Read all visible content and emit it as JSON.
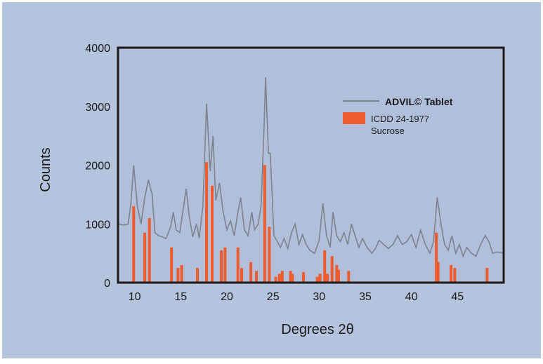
{
  "colors": {
    "panel": "#b6c3dc",
    "plot_bg": "#b2bfdb",
    "frame": "#1a1a1a",
    "trace": "#7d828c",
    "bars": "#ee5b2c",
    "text": "#1a1a1a"
  },
  "chart_data": {
    "type": "bar",
    "title": "",
    "xlabel": "Degrees  2θ",
    "ylabel": "Counts",
    "xlim": [
      8.2,
      50
    ],
    "ylim": [
      0,
      4000
    ],
    "x_ticks": [
      10,
      15,
      20,
      25,
      30,
      35,
      40,
      45
    ],
    "y_ticks": [
      0,
      1000,
      2000,
      3000,
      4000
    ],
    "grid": false,
    "legend_position": "top-right",
    "legend": {
      "line_label": "ADVIL© Tablet",
      "bar_label_line1": "ICDD 24-1977",
      "bar_label_line2": "Sucrose"
    },
    "series": [
      {
        "name": "ADVIL© Tablet",
        "type": "line",
        "points": [
          [
            8.2,
            1000
          ],
          [
            8.8,
            980
          ],
          [
            9.3,
            1000
          ],
          [
            9.6,
            1350
          ],
          [
            9.9,
            2000
          ],
          [
            10.3,
            1300
          ],
          [
            10.7,
            1000
          ],
          [
            11.1,
            1450
          ],
          [
            11.5,
            1750
          ],
          [
            11.9,
            1500
          ],
          [
            12.2,
            850
          ],
          [
            12.6,
            800
          ],
          [
            13.0,
            780
          ],
          [
            13.4,
            750
          ],
          [
            13.9,
            950
          ],
          [
            14.2,
            1200
          ],
          [
            14.5,
            900
          ],
          [
            14.9,
            850
          ],
          [
            15.3,
            1300
          ],
          [
            15.6,
            1600
          ],
          [
            15.9,
            1150
          ],
          [
            16.3,
            780
          ],
          [
            16.7,
            1000
          ],
          [
            17.0,
            760
          ],
          [
            17.4,
            1300
          ],
          [
            17.8,
            3050
          ],
          [
            18.2,
            1900
          ],
          [
            18.5,
            2500
          ],
          [
            18.8,
            1400
          ],
          [
            19.2,
            1700
          ],
          [
            19.6,
            1200
          ],
          [
            20.0,
            900
          ],
          [
            20.4,
            1050
          ],
          [
            20.8,
            800
          ],
          [
            21.2,
            1200
          ],
          [
            21.5,
            1450
          ],
          [
            21.9,
            900
          ],
          [
            22.3,
            800
          ],
          [
            22.7,
            1200
          ],
          [
            23.0,
            900
          ],
          [
            23.4,
            1000
          ],
          [
            23.7,
            1300
          ],
          [
            24.0,
            2500
          ],
          [
            24.2,
            3500
          ],
          [
            24.5,
            2200
          ],
          [
            24.7,
            2200
          ],
          [
            25.1,
            800
          ],
          [
            25.4,
            720
          ],
          [
            25.8,
            600
          ],
          [
            26.2,
            750
          ],
          [
            26.6,
            580
          ],
          [
            27.0,
            850
          ],
          [
            27.4,
            1000
          ],
          [
            27.8,
            650
          ],
          [
            28.2,
            820
          ],
          [
            28.6,
            650
          ],
          [
            29.0,
            550
          ],
          [
            29.5,
            500
          ],
          [
            30.0,
            720
          ],
          [
            30.4,
            1350
          ],
          [
            30.8,
            800
          ],
          [
            31.2,
            600
          ],
          [
            31.5,
            1200
          ],
          [
            31.9,
            800
          ],
          [
            32.3,
            700
          ],
          [
            32.7,
            850
          ],
          [
            33.1,
            650
          ],
          [
            33.5,
            1000
          ],
          [
            33.9,
            800
          ],
          [
            34.3,
            600
          ],
          [
            34.7,
            750
          ],
          [
            35.2,
            600
          ],
          [
            35.7,
            500
          ],
          [
            36.1,
            580
          ],
          [
            36.5,
            720
          ],
          [
            37.0,
            650
          ],
          [
            37.5,
            580
          ],
          [
            38.0,
            650
          ],
          [
            38.5,
            800
          ],
          [
            39.0,
            650
          ],
          [
            39.5,
            700
          ],
          [
            40.0,
            820
          ],
          [
            40.5,
            600
          ],
          [
            41.0,
            900
          ],
          [
            41.5,
            650
          ],
          [
            42.0,
            500
          ],
          [
            42.4,
            700
          ],
          [
            42.8,
            1450
          ],
          [
            43.2,
            1000
          ],
          [
            43.6,
            650
          ],
          [
            44.0,
            550
          ],
          [
            44.4,
            800
          ],
          [
            44.8,
            500
          ],
          [
            45.2,
            650
          ],
          [
            45.6,
            450
          ],
          [
            46.0,
            600
          ],
          [
            46.5,
            500
          ],
          [
            47.0,
            450
          ],
          [
            47.5,
            650
          ],
          [
            48.0,
            800
          ],
          [
            48.4,
            700
          ],
          [
            48.8,
            500
          ],
          [
            49.3,
            520
          ],
          [
            50.0,
            500
          ]
        ]
      },
      {
        "name": "ICDD 24-1977 Sucrose",
        "type": "bar",
        "points": [
          [
            9.9,
            1300
          ],
          [
            11.1,
            850
          ],
          [
            11.6,
            1100
          ],
          [
            14.0,
            600
          ],
          [
            14.7,
            250
          ],
          [
            15.1,
            300
          ],
          [
            16.8,
            250
          ],
          [
            17.8,
            2050
          ],
          [
            18.4,
            1650
          ],
          [
            19.4,
            550
          ],
          [
            19.8,
            600
          ],
          [
            21.2,
            600
          ],
          [
            21.6,
            250
          ],
          [
            22.6,
            350
          ],
          [
            23.2,
            200
          ],
          [
            24.1,
            2000
          ],
          [
            24.6,
            950
          ],
          [
            25.3,
            100
          ],
          [
            25.7,
            150
          ],
          [
            26.0,
            200
          ],
          [
            26.9,
            200
          ],
          [
            27.1,
            150
          ],
          [
            28.3,
            180
          ],
          [
            29.8,
            100
          ],
          [
            30.1,
            150
          ],
          [
            30.6,
            550
          ],
          [
            30.9,
            150
          ],
          [
            31.4,
            450
          ],
          [
            31.9,
            300
          ],
          [
            32.1,
            220
          ],
          [
            33.2,
            200
          ],
          [
            42.7,
            850
          ],
          [
            42.9,
            350
          ],
          [
            44.3,
            300
          ],
          [
            44.7,
            250
          ],
          [
            48.2,
            250
          ]
        ]
      }
    ]
  }
}
